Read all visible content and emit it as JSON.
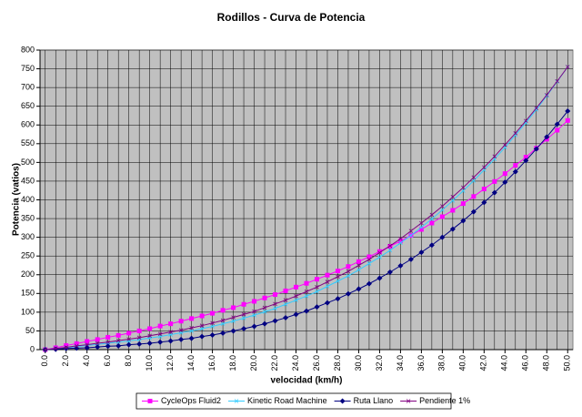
{
  "chart_data": {
    "type": "line",
    "title": "Rodillos - Curva de Potencia",
    "x_label": "velocidad (km/h)",
    "y_label": "Potencia (vatios)",
    "x": [
      0,
      1,
      2,
      3,
      4,
      5,
      6,
      7,
      8,
      9,
      10,
      11,
      12,
      13,
      14,
      15,
      16,
      17,
      18,
      19,
      20,
      21,
      22,
      23,
      24,
      25,
      26,
      27,
      28,
      29,
      30,
      31,
      32,
      33,
      34,
      35,
      36,
      37,
      38,
      39,
      40,
      41,
      42,
      43,
      44,
      45,
      46,
      47,
      48,
      49,
      50
    ],
    "xlim": [
      -0.5,
      50.5
    ],
    "xticks": [
      {
        "value": 0,
        "label": "0.0"
      },
      {
        "value": 2,
        "label": "2.0"
      },
      {
        "value": 4,
        "label": "4.0"
      },
      {
        "value": 6,
        "label": "6.0"
      },
      {
        "value": 8,
        "label": "8.0"
      },
      {
        "value": 10,
        "label": "10.0"
      },
      {
        "value": 12,
        "label": "12.0"
      },
      {
        "value": 14,
        "label": "14.0"
      },
      {
        "value": 16,
        "label": "16.0"
      },
      {
        "value": 18,
        "label": "18.0"
      },
      {
        "value": 20,
        "label": "20.0"
      },
      {
        "value": 22,
        "label": "22.0"
      },
      {
        "value": 24,
        "label": "24.0"
      },
      {
        "value": 26,
        "label": "26.0"
      },
      {
        "value": 28,
        "label": "28.0"
      },
      {
        "value": 30,
        "label": "30.0"
      },
      {
        "value": 32,
        "label": "32.0"
      },
      {
        "value": 34,
        "label": "34.0"
      },
      {
        "value": 36,
        "label": "36.0"
      },
      {
        "value": 38,
        "label": "38.0"
      },
      {
        "value": 40,
        "label": "40.0"
      },
      {
        "value": 42,
        "label": "42.0"
      },
      {
        "value": 44,
        "label": "44.0"
      },
      {
        "value": 46,
        "label": "46.0"
      },
      {
        "value": 48,
        "label": "48.0"
      },
      {
        "value": 50,
        "label": "50.0"
      }
    ],
    "ylim": [
      0,
      800
    ],
    "yticks": [
      0,
      50,
      100,
      150,
      200,
      250,
      300,
      350,
      400,
      450,
      500,
      550,
      600,
      650,
      700,
      750,
      800
    ],
    "grid": true,
    "legend": "bottom",
    "series": [
      {
        "name": "CycleOps Fluid2",
        "color": "#ff00ff",
        "marker": "square",
        "values": [
          0,
          5,
          11,
          16,
          22,
          27,
          33,
          38,
          44,
          50,
          56,
          63,
          69,
          76,
          83,
          90,
          97,
          105,
          112,
          121,
          129,
          138,
          147,
          157,
          167,
          177,
          188,
          199,
          210,
          222,
          235,
          248,
          262,
          276,
          290,
          305,
          321,
          338,
          355,
          372,
          390,
          409,
          429,
          449,
          470,
          492,
          514,
          538,
          562,
          586,
          612
        ]
      },
      {
        "name": "Kinetic Road Machine",
        "color": "#33ccff",
        "marker": "x",
        "values": [
          0,
          3,
          5,
          8,
          11,
          14,
          17,
          20,
          23,
          27,
          31,
          35,
          40,
          45,
          50,
          56,
          62,
          69,
          76,
          84,
          92,
          101,
          110,
          121,
          132,
          143,
          155,
          169,
          183,
          197,
          213,
          230,
          247,
          265,
          285,
          305,
          327,
          349,
          373,
          398,
          424,
          451,
          480,
          509,
          540,
          573,
          606,
          641,
          678,
          716,
          755
        ]
      },
      {
        "name": "Ruta Llano",
        "color": "#000080",
        "marker": "diamond",
        "values": [
          0,
          1,
          3,
          4,
          5,
          7,
          9,
          10,
          13,
          15,
          17,
          20,
          23,
          27,
          30,
          35,
          39,
          44,
          50,
          56,
          62,
          69,
          77,
          85,
          94,
          103,
          114,
          125,
          136,
          149,
          162,
          176,
          191,
          207,
          224,
          241,
          260,
          279,
          300,
          322,
          344,
          368,
          393,
          419,
          447,
          475,
          505,
          536,
          568,
          602,
          637
        ]
      },
      {
        "name": "Pendiente 1%",
        "color": "#800080",
        "marker": "x",
        "values": [
          0,
          3,
          6,
          10,
          13,
          17,
          20,
          24,
          28,
          32,
          37,
          42,
          47,
          52,
          58,
          64,
          71,
          78,
          86,
          94,
          102,
          112,
          122,
          132,
          143,
          155,
          167,
          181,
          195,
          209,
          225,
          241,
          259,
          277,
          296,
          317,
          338,
          360,
          383,
          408,
          433,
          460,
          487,
          516,
          547,
          578,
          611,
          645,
          680,
          717,
          755
        ]
      }
    ]
  }
}
